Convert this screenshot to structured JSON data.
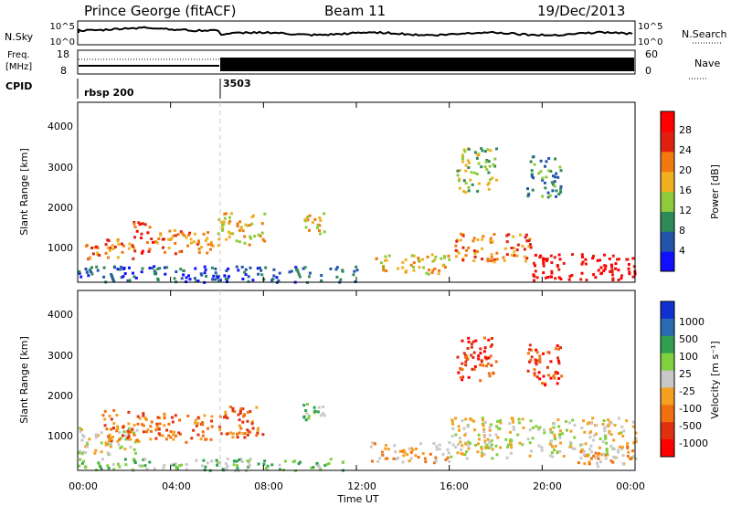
{
  "header": {
    "station": "Prince George (fitACF)",
    "beam": "Beam 11",
    "date": "19/Dec/2013"
  },
  "strip": {
    "nsky_label": "N.Sky",
    "nsearch_label": "N.Search",
    "nsky_ticks": [
      "10^5",
      "10^0"
    ],
    "nsearch_ticks": [
      "10^5",
      "10^0"
    ],
    "freq_label_line1": "Freq.",
    "freq_label_line2": "[MHz]",
    "freq_ticks": [
      "18",
      "8"
    ],
    "nave_label": "Nave",
    "nave_ticks": [
      "60",
      "0"
    ],
    "cpid_label": "CPID",
    "cpid_segments": [
      {
        "label": "rbsp 200",
        "start_hour": 0
      },
      {
        "label": "3503",
        "start_hour": 6
      }
    ]
  },
  "chart_data": [
    {
      "type": "heatmap",
      "panel": "power",
      "ylabel": "Slant Range [km]",
      "yticks": [
        "1000",
        "2000",
        "3000",
        "4000"
      ],
      "ylim": [
        180,
        4600
      ],
      "xlim": [
        0,
        24
      ],
      "colorbar_label": "Power [dB]",
      "colorbar_ticks": [
        "4",
        "8",
        "12",
        "16",
        "20",
        "24",
        "28"
      ],
      "colors": [
        "#1010ff",
        "#2255aa",
        "#2f8a5a",
        "#8fca3a",
        "#f0b020",
        "#f07a10",
        "#e02010",
        "#ff0000"
      ],
      "echo_regions": [
        {
          "t0": 0.3,
          "t1": 2.4,
          "r0": 750,
          "r1": 1300,
          "level": 5
        },
        {
          "t0": 2.3,
          "t1": 3.2,
          "r0": 900,
          "r1": 1700,
          "level": 6
        },
        {
          "t0": 3.3,
          "t1": 5.8,
          "r0": 900,
          "r1": 1500,
          "level": 5
        },
        {
          "t0": 6.0,
          "t1": 8.0,
          "r0": 1100,
          "r1": 1900,
          "level": 4
        },
        {
          "t0": 9.6,
          "t1": 10.6,
          "r0": 1400,
          "r1": 1900,
          "level": 4
        },
        {
          "t0": 12.8,
          "t1": 16.0,
          "r0": 400,
          "r1": 900,
          "level": 4
        },
        {
          "t0": 16.2,
          "t1": 19.5,
          "r0": 700,
          "r1": 1400,
          "level": 5
        },
        {
          "t0": 19.5,
          "t1": 24.0,
          "r0": 250,
          "r1": 900,
          "level": 7
        },
        {
          "t0": 0.0,
          "t1": 12.0,
          "r0": 200,
          "r1": 600,
          "level": 1
        },
        {
          "t0": 16.3,
          "t1": 18.0,
          "r0": 2400,
          "r1": 3500,
          "level": 3
        },
        {
          "t0": 19.3,
          "t1": 20.8,
          "r0": 2300,
          "r1": 3300,
          "level": 2
        }
      ]
    },
    {
      "type": "heatmap",
      "panel": "velocity",
      "ylabel": "Slant Range [km]",
      "yticks": [
        "1000",
        "2000",
        "3000",
        "4000"
      ],
      "ylim": [
        180,
        4600
      ],
      "xlim": [
        0,
        24
      ],
      "xticks": [
        "00:00",
        "04:00",
        "08:00",
        "12:00",
        "16:00",
        "20:00",
        "00:00"
      ],
      "xlabel": "Time UT",
      "colorbar_label": "Velocity [m s⁻¹]",
      "colorbar_ticks": [
        "1000",
        "500",
        "100",
        "25",
        "-25",
        "-100",
        "-500",
        "-1000"
      ],
      "colors": [
        "#1030d0",
        "#2a6ab0",
        "#30a050",
        "#80d040",
        "#c8c8c8",
        "#f5a020",
        "#f07010",
        "#e03010",
        "#ff0000"
      ],
      "echo_regions": [
        {
          "t0": 0.0,
          "t1": 2.5,
          "r0": 600,
          "r1": 1300,
          "level": 4
        },
        {
          "t0": 1.0,
          "t1": 3.2,
          "r0": 900,
          "r1": 1700,
          "level": 6
        },
        {
          "t0": 3.3,
          "t1": 5.8,
          "r0": 900,
          "r1": 1600,
          "level": 6
        },
        {
          "t0": 6.0,
          "t1": 8.0,
          "r0": 1000,
          "r1": 1800,
          "level": 6
        },
        {
          "t0": 9.6,
          "t1": 10.6,
          "r0": 1400,
          "r1": 1900,
          "level": 3
        },
        {
          "t0": 12.5,
          "t1": 16.0,
          "r0": 400,
          "r1": 900,
          "level": 5
        },
        {
          "t0": 16.0,
          "t1": 24.0,
          "r0": 500,
          "r1": 1500,
          "level": 4
        },
        {
          "t0": 21.5,
          "t1": 24.0,
          "r0": 300,
          "r1": 800,
          "level": 5
        },
        {
          "t0": 0.0,
          "t1": 12.0,
          "r0": 200,
          "r1": 500,
          "level": 3
        },
        {
          "t0": 16.3,
          "t1": 18.0,
          "r0": 2400,
          "r1": 3500,
          "level": 7
        },
        {
          "t0": 19.3,
          "t1": 20.8,
          "r0": 2300,
          "r1": 3300,
          "level": 7
        }
      ]
    }
  ]
}
